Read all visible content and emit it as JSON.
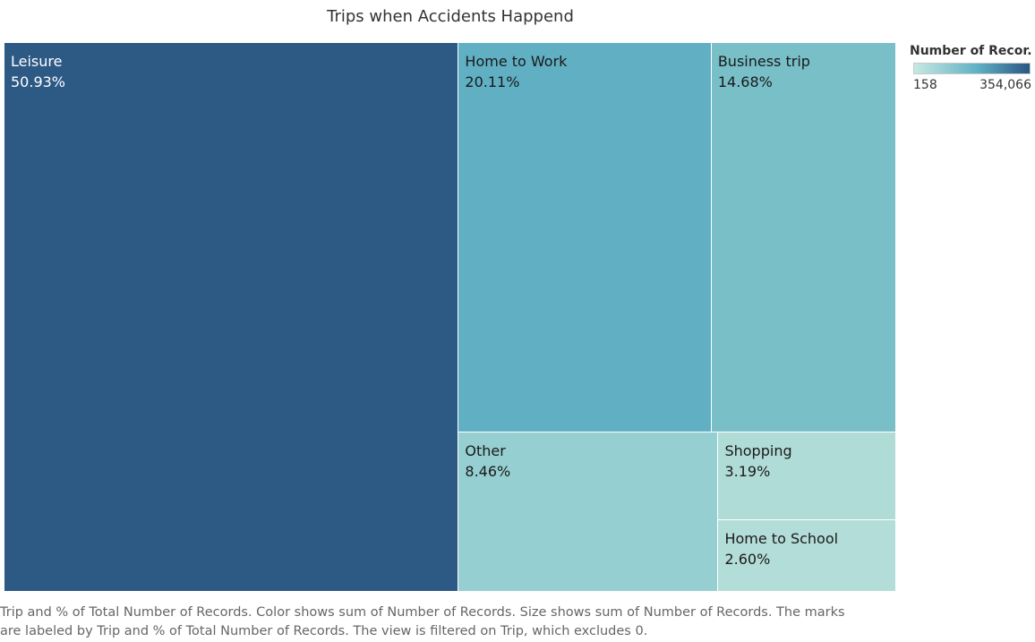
{
  "chart_data": {
    "type": "treemap",
    "title": "Trips when Accidents Happend",
    "items": [
      {
        "name": "Leisure",
        "label": "50.93%",
        "percent": 50.93,
        "color": "#2d5985",
        "text_color": "#ffffff"
      },
      {
        "name": "Home to Work",
        "label": "20.11%",
        "percent": 20.11,
        "color": "#60afc3",
        "text_color": "#1a1a1a"
      },
      {
        "name": "Business trip",
        "label": "14.68%",
        "percent": 14.68,
        "color": "#78bfc8",
        "text_color": "#1a1a1a"
      },
      {
        "name": "Other",
        "label": "8.46%",
        "percent": 8.46,
        "color": "#96cfd1",
        "text_color": "#1a1a1a"
      },
      {
        "name": "Shopping",
        "label": "3.19%",
        "percent": 3.19,
        "color": "#b0dcd8",
        "text_color": "#1a1a1a"
      },
      {
        "name": "Home to School",
        "label": "2.60%",
        "percent": 2.6,
        "color": "#b3ddd8",
        "text_color": "#1a1a1a"
      }
    ],
    "legend": {
      "title": "Number of Recor..",
      "min_label": "158",
      "max_label": "354,066",
      "color_low": "#c6e9e3",
      "color_high": "#2a5783"
    },
    "caption": [
      "Trip and % of Total Number of Records.  Color shows sum of Number of Records.  Size shows sum of Number of Records.  The marks",
      "are labeled by Trip and % of Total Number of Records. The view is filtered on Trip, which excludes 0."
    ]
  }
}
